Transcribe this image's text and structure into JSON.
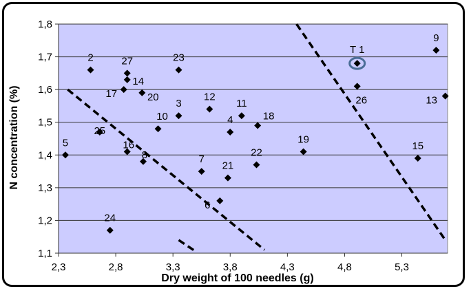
{
  "chart_data": {
    "type": "scatter",
    "title": "",
    "xlabel": "Dry weight of 100 needles (g)",
    "ylabel": "N concentration (%)",
    "xlim": [
      2.3,
      5.7
    ],
    "ylim": [
      1.1,
      1.8
    ],
    "x_ticks": [
      "2,3",
      "2,8",
      "3,3",
      "3,8",
      "4,3",
      "4,8",
      "5,3"
    ],
    "x_tick_values": [
      2.3,
      2.8,
      3.3,
      3.8,
      4.3,
      4.8,
      5.3
    ],
    "y_ticks": [
      "1,1",
      "1,2",
      "1,3",
      "1,4",
      "1,5",
      "1,6",
      "1,7",
      "1,8"
    ],
    "y_tick_values": [
      1.1,
      1.2,
      1.3,
      1.4,
      1.5,
      1.6,
      1.7,
      1.8
    ],
    "grid": "horizontal",
    "colors": {
      "plot_bg": "#ccccff",
      "marker": "#000000",
      "line": "#000000",
      "highlight_ring": "#4a6d96"
    },
    "points": [
      {
        "label": "2",
        "x": 2.58,
        "y": 1.66
      },
      {
        "label": "27",
        "x": 2.9,
        "y": 1.65
      },
      {
        "label": "14",
        "x": 2.9,
        "y": 1.63
      },
      {
        "label": "17",
        "x": 2.87,
        "y": 1.6
      },
      {
        "label": "20",
        "x": 3.03,
        "y": 1.59
      },
      {
        "label": "23",
        "x": 3.35,
        "y": 1.66
      },
      {
        "label": "3",
        "x": 3.35,
        "y": 1.52
      },
      {
        "label": "12",
        "x": 3.62,
        "y": 1.54
      },
      {
        "label": "11",
        "x": 3.9,
        "y": 1.52
      },
      {
        "label": "4",
        "x": 3.8,
        "y": 1.47
      },
      {
        "label": "18",
        "x": 4.04,
        "y": 1.49
      },
      {
        "label": "25",
        "x": 2.66,
        "y": 1.47
      },
      {
        "label": "10",
        "x": 3.17,
        "y": 1.48
      },
      {
        "label": "16",
        "x": 2.9,
        "y": 1.41
      },
      {
        "label": "8",
        "x": 3.04,
        "y": 1.38
      },
      {
        "label": "5",
        "x": 2.36,
        "y": 1.4
      },
      {
        "label": "7",
        "x": 3.55,
        "y": 1.35
      },
      {
        "label": "21",
        "x": 3.78,
        "y": 1.33
      },
      {
        "label": "6",
        "x": 3.71,
        "y": 1.26
      },
      {
        "label": "22",
        "x": 4.03,
        "y": 1.37
      },
      {
        "label": "19",
        "x": 4.44,
        "y": 1.41
      },
      {
        "label": "24",
        "x": 2.75,
        "y": 1.17
      },
      {
        "label": "T 1",
        "x": 4.91,
        "y": 1.68,
        "highlight": true
      },
      {
        "label": "26",
        "x": 4.91,
        "y": 1.61
      },
      {
        "label": "9",
        "x": 5.6,
        "y": 1.72
      },
      {
        "label": "13",
        "x": 5.68,
        "y": 1.58
      },
      {
        "label": "15",
        "x": 5.44,
        "y": 1.39
      }
    ],
    "lines": [
      {
        "name": "left-dashed-line",
        "x": [
          2.38,
          4.1
        ],
        "y": [
          1.6,
          1.11
        ]
      },
      {
        "name": "bottom-dashed-line",
        "x": [
          3.35,
          3.5
        ],
        "y": [
          1.14,
          1.105
        ]
      },
      {
        "name": "right-dashed-line",
        "x": [
          4.38,
          5.68
        ],
        "y": [
          1.8,
          1.14
        ]
      }
    ]
  }
}
